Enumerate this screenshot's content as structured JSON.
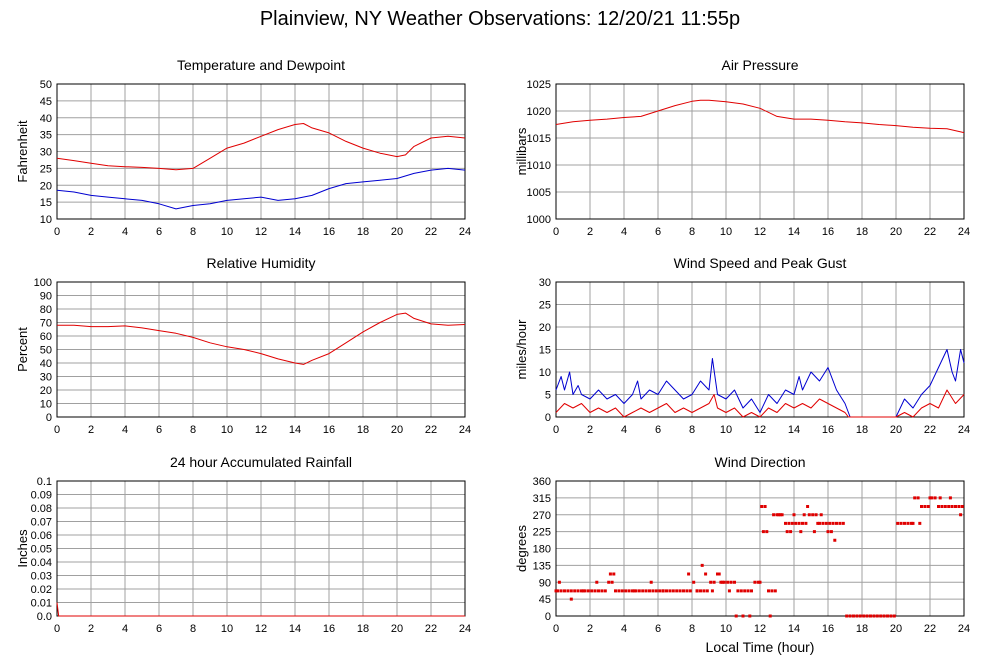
{
  "page": {
    "title": "Plainview, NY Weather Observations: 12/20/21 11:55p"
  },
  "colors": {
    "primary_series": "#e00000",
    "secondary_series": "#0000d0",
    "grid": "#a0a0a0"
  },
  "chart_data": [
    {
      "id": "temperature",
      "type": "line",
      "title": "Temperature and Dewpoint",
      "xlabel": "",
      "ylabel": "Fahrenheit",
      "xlim": [
        0,
        24
      ],
      "ylim": [
        10,
        50
      ],
      "xticks": [
        0,
        2,
        4,
        6,
        8,
        10,
        12,
        14,
        16,
        18,
        20,
        22,
        24
      ],
      "yticks": [
        10,
        15,
        20,
        25,
        30,
        35,
        40,
        45,
        50
      ],
      "grid": true,
      "series": [
        {
          "color": "#e00000",
          "x": [
            0,
            1,
            2,
            3,
            4,
            5,
            6,
            7,
            8,
            9,
            10,
            11,
            12,
            13,
            14,
            14.5,
            15,
            16,
            17,
            18,
            19,
            20,
            20.5,
            21,
            22,
            23,
            24
          ],
          "y": [
            28,
            27.3,
            26.5,
            25.8,
            25.5,
            25.3,
            25,
            24.6,
            25,
            28,
            31,
            32.5,
            34.5,
            36.5,
            38,
            38.3,
            37,
            35.5,
            33,
            31,
            29.5,
            28.5,
            29,
            31.5,
            34,
            34.5,
            34
          ]
        },
        {
          "color": "#0000d0",
          "x": [
            0,
            1,
            2,
            3,
            4,
            5,
            6,
            7,
            8,
            9,
            10,
            11,
            12,
            13,
            14,
            15,
            16,
            17,
            18,
            19,
            20,
            21,
            22,
            23,
            24
          ],
          "y": [
            18.5,
            18,
            17,
            16.5,
            16,
            15.5,
            14.5,
            13,
            14,
            14.5,
            15.5,
            16,
            16.5,
            15.5,
            16,
            17,
            19,
            20.5,
            21,
            21.5,
            22,
            23.5,
            24.5,
            25,
            24.5
          ]
        }
      ]
    },
    {
      "id": "pressure",
      "type": "line",
      "title": "Air Pressure",
      "xlabel": "",
      "ylabel": "millibars",
      "xlim": [
        0,
        24
      ],
      "ylim": [
        1000,
        1025
      ],
      "xticks": [
        0,
        2,
        4,
        6,
        8,
        10,
        12,
        14,
        16,
        18,
        20,
        22,
        24
      ],
      "yticks": [
        1000,
        1005,
        1010,
        1015,
        1020,
        1025
      ],
      "grid": true,
      "series": [
        {
          "color": "#e00000",
          "x": [
            0,
            1,
            2,
            3,
            4,
            5,
            6,
            7,
            8,
            8.5,
            9,
            10,
            11,
            12,
            13,
            14,
            15,
            16,
            17,
            18,
            19,
            20,
            21,
            22,
            23,
            24
          ],
          "y": [
            1017.5,
            1018,
            1018.3,
            1018.5,
            1018.8,
            1019,
            1020,
            1021,
            1021.8,
            1022,
            1022,
            1021.7,
            1021.3,
            1020.5,
            1019,
            1018.5,
            1018.5,
            1018.3,
            1018,
            1017.8,
            1017.5,
            1017.3,
            1017,
            1016.8,
            1016.7,
            1016
          ]
        }
      ]
    },
    {
      "id": "humidity",
      "type": "line",
      "title": "Relative Humidity",
      "xlabel": "",
      "ylabel": "Percent",
      "xlim": [
        0,
        24
      ],
      "ylim": [
        0,
        100
      ],
      "xticks": [
        0,
        2,
        4,
        6,
        8,
        10,
        12,
        14,
        16,
        18,
        20,
        22,
        24
      ],
      "yticks": [
        0,
        10,
        20,
        30,
        40,
        50,
        60,
        70,
        80,
        90,
        100
      ],
      "grid": true,
      "series": [
        {
          "color": "#e00000",
          "x": [
            0,
            1,
            2,
            3,
            4,
            5,
            6,
            7,
            8,
            9,
            10,
            11,
            12,
            13,
            14,
            14.5,
            15,
            16,
            17,
            18,
            19,
            20,
            20.5,
            21,
            22,
            23,
            24
          ],
          "y": [
            68,
            68,
            67,
            67,
            67.5,
            66,
            64,
            62,
            59,
            55,
            52,
            50,
            47,
            43,
            40,
            39,
            42,
            47,
            55,
            63,
            70,
            76,
            77,
            73,
            69,
            68,
            68.5
          ]
        }
      ]
    },
    {
      "id": "wind-speed",
      "type": "line",
      "title": "Wind Speed and Peak Gust",
      "xlabel": "",
      "ylabel": "miles/hour",
      "xlim": [
        0,
        24
      ],
      "ylim": [
        0,
        30
      ],
      "xticks": [
        0,
        2,
        4,
        6,
        8,
        10,
        12,
        14,
        16,
        18,
        20,
        22,
        24
      ],
      "yticks": [
        0,
        5,
        10,
        15,
        20,
        25,
        30
      ],
      "grid": true,
      "series": [
        {
          "color": "#0000d0",
          "x": [
            0,
            0.3,
            0.5,
            0.8,
            1,
            1.3,
            1.5,
            2,
            2.5,
            3,
            3.5,
            4,
            4.5,
            4.8,
            5,
            5.5,
            6,
            6.5,
            7,
            7.5,
            8,
            8.5,
            9,
            9.2,
            9.5,
            10,
            10.5,
            11,
            11.5,
            12,
            12.5,
            13,
            13.5,
            14,
            14.3,
            14.5,
            15,
            15.5,
            16,
            16.5,
            17,
            17.2,
            17.3,
            18,
            19,
            19.5,
            20,
            20.5,
            21,
            21.5,
            22,
            22.5,
            23,
            23.3,
            23.5,
            23.8,
            24
          ],
          "y": [
            6,
            9,
            6,
            10,
            5,
            7,
            5,
            4,
            6,
            4,
            5,
            3,
            5,
            8,
            4,
            6,
            5,
            8,
            6,
            4,
            5,
            8,
            6,
            13,
            5,
            4,
            6,
            2,
            4,
            1,
            5,
            3,
            6,
            5,
            9,
            6,
            10,
            8,
            11,
            6,
            3,
            1,
            0,
            0,
            0,
            0,
            0,
            4,
            2,
            5,
            7,
            11,
            15,
            10,
            8,
            15,
            12
          ]
        },
        {
          "color": "#e00000",
          "x": [
            0,
            0.5,
            1,
            1.5,
            2,
            2.5,
            3,
            3.5,
            4,
            4.5,
            5,
            5.5,
            6,
            6.5,
            7,
            7.5,
            8,
            8.5,
            9,
            9.3,
            9.5,
            10,
            10.5,
            11,
            11.5,
            12,
            12.5,
            13,
            13.5,
            14,
            14.5,
            15,
            15.5,
            16,
            16.5,
            17,
            17.2,
            17.3,
            18,
            19,
            19.5,
            20,
            20.5,
            21,
            21.5,
            22,
            22.5,
            23,
            23.5,
            24
          ],
          "y": [
            1,
            3,
            2,
            3,
            1,
            2,
            1,
            2,
            0,
            1,
            2,
            1,
            2,
            3,
            1,
            2,
            1,
            2,
            3,
            5,
            2,
            1,
            2,
            0,
            1,
            0,
            2,
            1,
            3,
            2,
            3,
            2,
            4,
            3,
            2,
            1,
            0,
            0,
            0,
            0,
            0,
            0,
            1,
            0,
            2,
            3,
            2,
            6,
            3,
            5
          ]
        }
      ]
    },
    {
      "id": "rainfall",
      "type": "line",
      "title": "24 hour Accumulated Rainfall",
      "xlabel": "",
      "ylabel": "Inches",
      "xlim": [
        0,
        24
      ],
      "ylim": [
        0,
        0.1
      ],
      "xticks": [
        0,
        2,
        4,
        6,
        8,
        10,
        12,
        14,
        16,
        18,
        20,
        22,
        24
      ],
      "yticks": [
        0.0,
        0.01,
        0.02,
        0.03,
        0.04,
        0.05,
        0.06,
        0.07,
        0.08,
        0.09,
        0.1
      ],
      "ytick_labels": [
        "0.0",
        "0.01",
        "0.02",
        "0.03",
        "0.04",
        "0.05",
        "0.06",
        "0.07",
        "0.08",
        "0.09",
        "0.1"
      ],
      "grid": true,
      "series": [
        {
          "color": "#e00000",
          "x": [
            0,
            0.1,
            24
          ],
          "y": [
            0.01,
            0,
            0
          ]
        }
      ]
    },
    {
      "id": "wind-direction",
      "type": "scatter",
      "title": "Wind Direction",
      "xlabel": "Local Time (hour)",
      "ylabel": "degrees",
      "xlim": [
        0,
        24
      ],
      "ylim": [
        0,
        360
      ],
      "xticks": [
        0,
        2,
        4,
        6,
        8,
        10,
        12,
        14,
        16,
        18,
        20,
        22,
        24
      ],
      "yticks": [
        0,
        45,
        90,
        135,
        180,
        225,
        270,
        315,
        360
      ],
      "grid": true,
      "series": [
        {
          "color": "#e00000",
          "x": [
            0,
            0.1,
            0.3,
            0.5,
            0.7,
            0.9,
            1.1,
            1.3,
            1.5,
            1.7,
            1.9,
            2.1,
            2.3,
            2.5,
            2.7,
            2.9,
            3.1,
            3.3,
            3.5,
            3.7,
            3.9,
            4.1,
            4.3,
            4.5,
            4.7,
            4.9,
            5.1,
            5.3,
            5.5,
            5.7,
            5.9,
            6.1,
            6.3,
            6.5,
            6.7,
            6.9,
            7.1,
            7.3,
            7.5,
            7.7,
            7.9,
            8.1,
            8.3,
            8.5,
            8.7,
            8.9,
            9.1,
            9.3,
            9.5,
            9.7,
            9.9,
            10.1,
            10.3,
            10.5,
            10.7,
            10.9,
            11.1,
            11.3,
            11.5,
            11.7,
            11.9,
            12.1,
            12.3,
            12.5,
            12.7,
            12.9,
            13.1,
            13.3,
            13.5,
            13.7,
            13.9,
            14.1,
            14.3,
            14.5,
            14.7,
            14.9,
            15.1,
            15.3,
            15.5,
            15.7,
            15.9,
            16.1,
            16.3,
            16.5,
            16.7,
            16.9,
            17.1,
            17.3,
            17.5,
            17.7,
            17.9,
            18.1,
            18.3,
            18.5,
            18.7,
            18.9,
            19.1,
            19.3,
            19.5,
            19.7,
            19.9,
            20.1,
            20.3,
            20.5,
            20.7,
            20.9,
            21.1,
            21.3,
            21.5,
            21.7,
            21.9,
            22.1,
            22.3,
            22.5,
            22.7,
            22.9,
            23.1,
            23.3,
            23.5,
            23.7,
            23.9,
            0.2,
            0.9,
            1.6,
            2.4,
            3.2,
            3.4,
            4.6,
            5.6,
            6.3,
            7.8,
            8.3,
            8.6,
            8.8,
            9.2,
            9.6,
            9.8,
            10.2,
            10.6,
            11.0,
            11.4,
            12.2,
            12.4,
            12.8,
            13.2,
            13.6,
            14.0,
            14.4,
            14.8,
            15.2,
            15.6,
            16.0,
            16.4,
            13.0,
            13.8,
            14.6,
            15.4,
            16.2,
            12.0,
            12.6,
            21.0,
            21.4,
            22.0,
            22.6,
            23.2,
            23.8
          ],
          "y": [
            67,
            67,
            67,
            67,
            67,
            67,
            67,
            67,
            67,
            67,
            67,
            67,
            67,
            67,
            67,
            67,
            90,
            90,
            67,
            67,
            67,
            67,
            67,
            67,
            67,
            67,
            67,
            67,
            67,
            67,
            67,
            67,
            67,
            67,
            67,
            67,
            67,
            67,
            67,
            67,
            67,
            90,
            67,
            67,
            67,
            67,
            90,
            90,
            112,
            90,
            90,
            90,
            90,
            90,
            67,
            67,
            67,
            67,
            67,
            90,
            90,
            292,
            292,
            67,
            67,
            67,
            270,
            270,
            247,
            247,
            247,
            247,
            247,
            247,
            247,
            270,
            270,
            270,
            247,
            247,
            247,
            247,
            247,
            247,
            247,
            247,
            0,
            0,
            0,
            0,
            0,
            0,
            0,
            0,
            0,
            0,
            0,
            0,
            0,
            0,
            0,
            247,
            247,
            247,
            247,
            247,
            315,
            315,
            292,
            292,
            292,
            315,
            315,
            292,
            292,
            292,
            292,
            292,
            292,
            292,
            292,
            90,
            45,
            67,
            90,
            112,
            112,
            67,
            90,
            67,
            112,
            67,
            135,
            112,
            67,
            112,
            90,
            67,
            0,
            0,
            0,
            225,
            225,
            270,
            270,
            225,
            270,
            225,
            292,
            225,
            270,
            225,
            202,
            270,
            225,
            270,
            247,
            225,
            90,
            0,
            247,
            247,
            315,
            315,
            315,
            270
          ]
        }
      ]
    }
  ]
}
